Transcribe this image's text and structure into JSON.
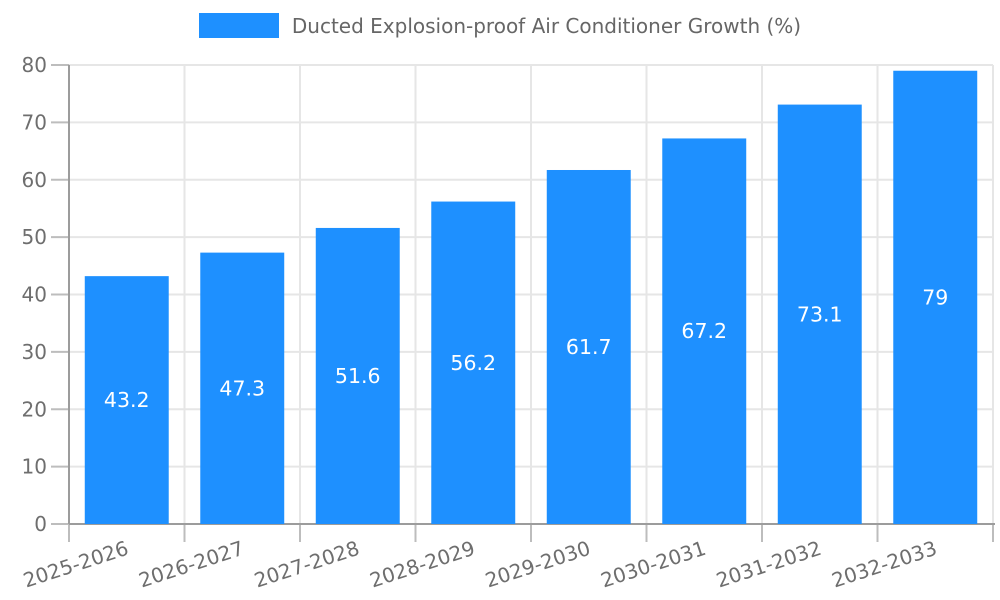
{
  "legend": {
    "label": "Ducted Explosion-proof Air Conditioner Growth (%)"
  },
  "chart_data": {
    "type": "bar",
    "title": "Ducted Explosion-proof Air Conditioner Growth (%)",
    "categories": [
      "2025-2026",
      "2026-2027",
      "2027-2028",
      "2028-2029",
      "2029-2030",
      "2030-2031",
      "2031-2032",
      "2032-2033"
    ],
    "values": [
      43.2,
      47.3,
      51.6,
      56.2,
      61.7,
      67.2,
      73.1,
      79
    ],
    "value_labels": [
      "43.2",
      "47.3",
      "51.6",
      "56.2",
      "61.7",
      "67.2",
      "73.1",
      "79"
    ],
    "xlabel": "",
    "ylabel": "",
    "ylim": [
      0,
      80
    ],
    "yticks": [
      0,
      10,
      20,
      30,
      40,
      50,
      60,
      70,
      80
    ],
    "grid": true,
    "legend_position": "top-center",
    "x_tick_rotation_deg": -18,
    "colors": {
      "bar": "#1e90ff",
      "grid": "#e6e6e6",
      "axis": "#9c9c9c",
      "tick_mark": "#bdbdbd",
      "tick_label": "#6e6e6e",
      "value_label": "#ffffff",
      "legend_text": "#666666",
      "background": "#ffffff"
    }
  }
}
